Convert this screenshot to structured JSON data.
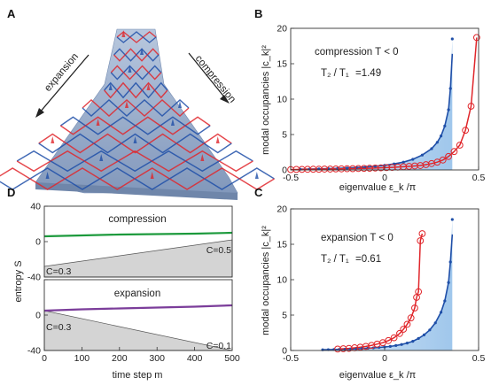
{
  "panels": {
    "A": {
      "letter": "A",
      "left_arrow_label": "expansion",
      "right_arrow_label": "compression"
    },
    "B": {
      "letter": "B",
      "annotation_condition": "compression  T < 0",
      "annotation_ratio_lhs": "T₂ / T₁",
      "annotation_ratio_value": "=1.49",
      "ylabel": "modal occupancies |c_k|²",
      "xlabel": "eigenvalue ε_k /π"
    },
    "C": {
      "letter": "C",
      "annotation_condition": "expansion  T < 0",
      "annotation_ratio_lhs": "T₂ / T₁",
      "annotation_ratio_value": "=0.61",
      "ylabel": "modal occupancies |c_k|²",
      "xlabel": "eigenvalue ε_k /π"
    },
    "D": {
      "letter": "D",
      "ylabel": "entropy S",
      "xlabel": "time step m",
      "top_title": "compression",
      "bottom_title": "expansion",
      "top_c_start": "C=0.3",
      "top_c_end": "C=0.5",
      "bottom_c_start": "C=0.3",
      "bottom_c_end": "C=0.1"
    }
  },
  "colors": {
    "blue_series": "#1f4fa8",
    "blue_fill": "#9cc3ea",
    "red_series": "#e0262b",
    "green_line": "#1c9a3c",
    "purple_line": "#7b3d9a",
    "gray_fill": "#d4d4d4",
    "lattice_glass": "#8aa3c4"
  },
  "chart_data": [
    {
      "id": "B",
      "type": "scatter",
      "xlim": [
        -0.5,
        0.5
      ],
      "ylim": [
        0,
        20
      ],
      "x_ticks": [
        "-0.5",
        "0",
        "0.5"
      ],
      "y_ticks": [
        "0",
        "5",
        "10",
        "15",
        "20"
      ],
      "series": [
        {
          "marker": "dot",
          "x": [
            -0.45,
            -0.4,
            -0.35,
            -0.3,
            -0.25,
            -0.2,
            -0.15,
            -0.1,
            -0.05,
            0.0,
            0.05,
            0.1,
            0.15,
            0.2,
            0.25,
            0.28,
            0.3,
            0.32,
            0.34,
            0.35,
            0.36
          ],
          "y": [
            0.1,
            0.12,
            0.15,
            0.18,
            0.22,
            0.27,
            0.33,
            0.42,
            0.52,
            0.65,
            0.85,
            1.1,
            1.5,
            2.1,
            3.0,
            3.9,
            4.8,
            6.2,
            8.5,
            11.5,
            18.5
          ]
        },
        {
          "marker": "circle",
          "x": [
            -0.5,
            -0.47,
            -0.44,
            -0.41,
            -0.38,
            -0.35,
            -0.32,
            -0.29,
            -0.26,
            -0.23,
            -0.2,
            -0.17,
            -0.14,
            -0.11,
            -0.08,
            -0.05,
            -0.02,
            0.01,
            0.04,
            0.07,
            0.1,
            0.13,
            0.16,
            0.19,
            0.22,
            0.25,
            0.28,
            0.31,
            0.34,
            0.37,
            0.4,
            0.43,
            0.46,
            0.49
          ],
          "y": [
            0.05,
            0.07,
            0.08,
            0.09,
            0.1,
            0.1,
            0.12,
            0.12,
            0.14,
            0.15,
            0.17,
            0.18,
            0.2,
            0.22,
            0.24,
            0.27,
            0.3,
            0.33,
            0.36,
            0.4,
            0.45,
            0.5,
            0.56,
            0.62,
            0.75,
            0.9,
            1.1,
            1.4,
            1.9,
            2.6,
            3.5,
            5.6,
            9.0,
            18.7
          ]
        }
      ]
    },
    {
      "id": "C",
      "type": "scatter",
      "xlim": [
        -0.5,
        0.5
      ],
      "ylim": [
        0,
        20
      ],
      "x_ticks": [
        "-0.5",
        "0",
        "0.5"
      ],
      "y_ticks": [
        "0",
        "5",
        "10",
        "15",
        "20"
      ],
      "series": [
        {
          "marker": "dot",
          "x": [
            -0.33,
            -0.3,
            -0.27,
            -0.24,
            -0.21,
            -0.18,
            -0.15,
            -0.12,
            -0.09,
            -0.06,
            -0.03,
            0.0,
            0.03,
            0.06,
            0.09,
            0.12,
            0.15,
            0.18,
            0.21,
            0.24,
            0.27,
            0.3,
            0.32,
            0.34,
            0.35,
            0.36
          ],
          "y": [
            0.1,
            0.12,
            0.14,
            0.16,
            0.18,
            0.21,
            0.24,
            0.28,
            0.32,
            0.37,
            0.43,
            0.5,
            0.58,
            0.7,
            0.85,
            1.05,
            1.3,
            1.7,
            2.2,
            2.9,
            3.9,
            5.4,
            7.0,
            9.6,
            12.5,
            18.5
          ]
        },
        {
          "marker": "circle",
          "x": [
            -0.25,
            -0.22,
            -0.19,
            -0.16,
            -0.13,
            -0.1,
            -0.07,
            -0.04,
            -0.01,
            0.02,
            0.05,
            0.08,
            0.1,
            0.12,
            0.14,
            0.16,
            0.17,
            0.18,
            0.19,
            0.2
          ],
          "y": [
            0.2,
            0.25,
            0.3,
            0.38,
            0.47,
            0.58,
            0.72,
            0.9,
            1.1,
            1.4,
            1.8,
            2.4,
            3.0,
            3.7,
            4.6,
            6.0,
            7.5,
            8.3,
            15.5,
            16.5
          ]
        }
      ]
    },
    {
      "id": "D-top",
      "type": "area",
      "xlim": [
        0,
        500
      ],
      "ylim": [
        -40,
        40
      ],
      "y_ticks": [
        "40",
        "0",
        "-40"
      ],
      "line": {
        "x": [
          0,
          100,
          200,
          300,
          400,
          500
        ],
        "y": [
          6,
          7,
          8,
          8.5,
          9,
          10
        ]
      },
      "area": {
        "x": [
          0,
          500
        ],
        "y": [
          -28,
          2
        ]
      }
    },
    {
      "id": "D-bottom",
      "type": "area",
      "xlim": [
        0,
        500
      ],
      "ylim": [
        -40,
        40
      ],
      "x_ticks": [
        "0",
        "100",
        "200",
        "300",
        "400",
        "500"
      ],
      "y_ticks": [
        "40",
        "0",
        "-40"
      ],
      "line": {
        "x": [
          0,
          100,
          200,
          300,
          400,
          500
        ],
        "y": [
          5,
          6.5,
          7.5,
          8.5,
          9.5,
          11
        ]
      },
      "area": {
        "x": [
          0,
          500
        ],
        "y": [
          5,
          -40
        ]
      }
    }
  ]
}
